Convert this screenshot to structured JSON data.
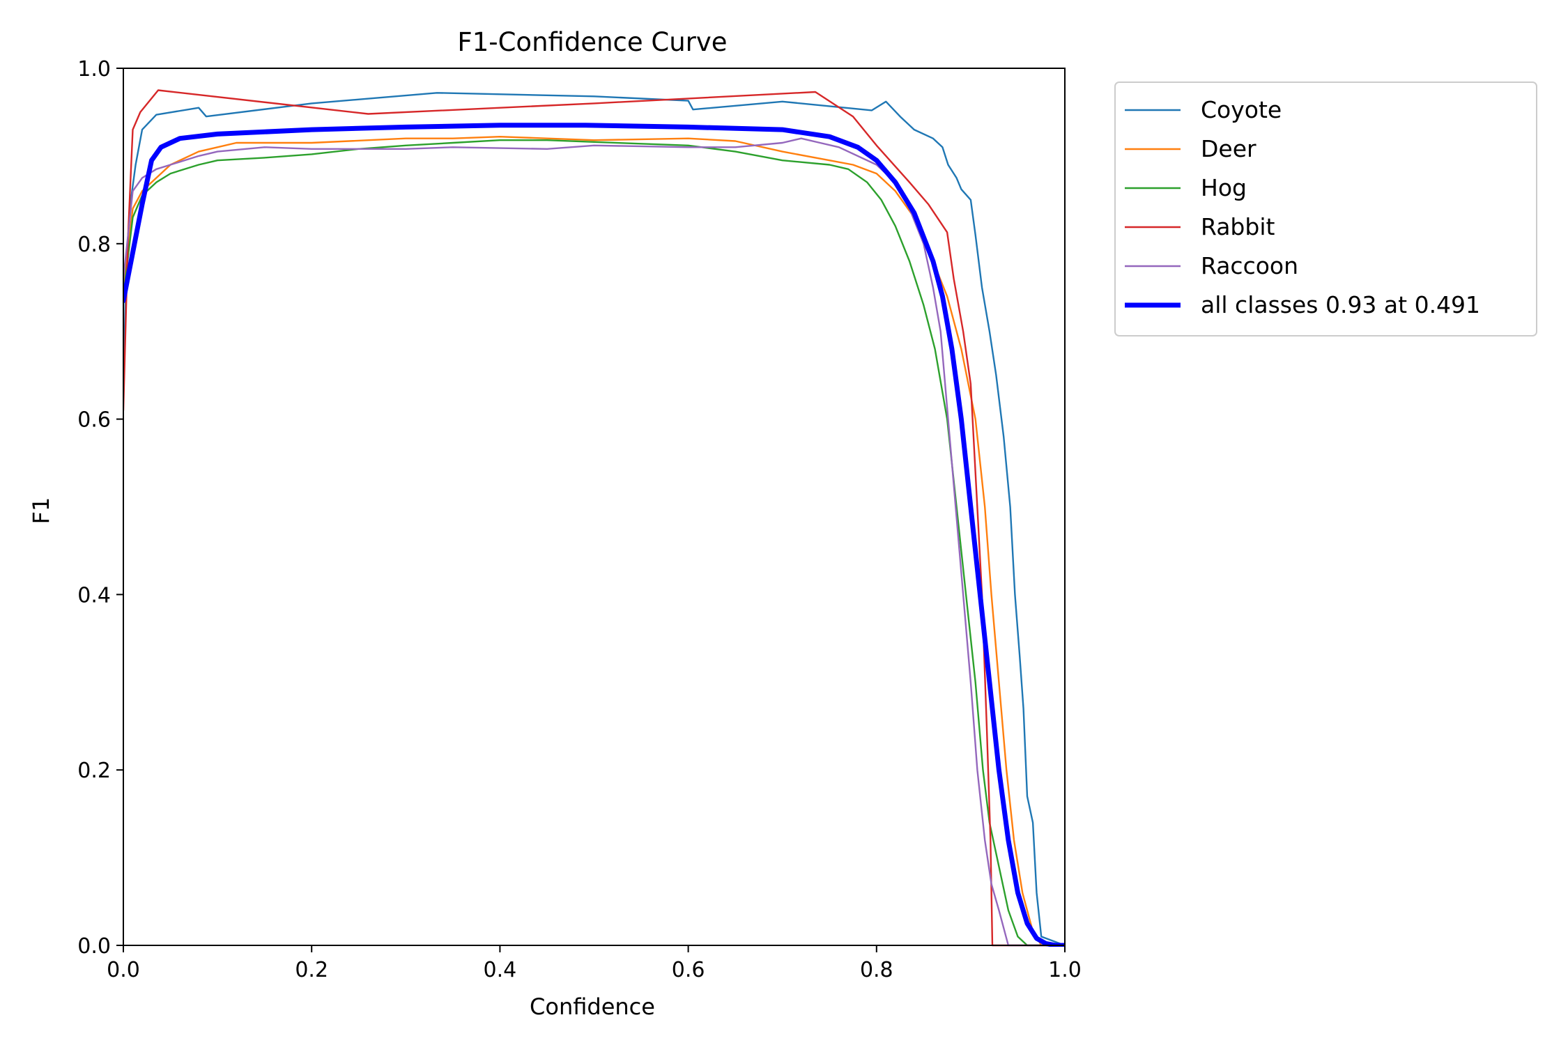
{
  "chart_data": {
    "type": "line",
    "title": "F1-Confidence Curve",
    "xlabel": "Confidence",
    "ylabel": "F1",
    "xlim": [
      0,
      1
    ],
    "ylim": [
      0,
      1
    ],
    "xticks": [
      "0.0",
      "0.2",
      "0.4",
      "0.6",
      "0.8",
      "1.0"
    ],
    "yticks": [
      "0.0",
      "0.2",
      "0.4",
      "0.6",
      "0.8",
      "1.0"
    ],
    "grid": false,
    "legend_position": "outside-top-right",
    "series": [
      {
        "name": "Coyote",
        "color": "#1f77b4",
        "width": 2.4,
        "points": [
          [
            0.0,
            0.62
          ],
          [
            0.003,
            0.78
          ],
          [
            0.008,
            0.85
          ],
          [
            0.013,
            0.89
          ],
          [
            0.02,
            0.93
          ],
          [
            0.035,
            0.947
          ],
          [
            0.08,
            0.955
          ],
          [
            0.088,
            0.945
          ],
          [
            0.2,
            0.96
          ],
          [
            0.333,
            0.972
          ],
          [
            0.5,
            0.968
          ],
          [
            0.6,
            0.963
          ],
          [
            0.605,
            0.953
          ],
          [
            0.7,
            0.962
          ],
          [
            0.795,
            0.952
          ],
          [
            0.81,
            0.962
          ],
          [
            0.825,
            0.945
          ],
          [
            0.84,
            0.93
          ],
          [
            0.86,
            0.92
          ],
          [
            0.87,
            0.91
          ],
          [
            0.876,
            0.89
          ],
          [
            0.885,
            0.875
          ],
          [
            0.89,
            0.862
          ],
          [
            0.9,
            0.85
          ],
          [
            0.905,
            0.81
          ],
          [
            0.912,
            0.75
          ],
          [
            0.92,
            0.7
          ],
          [
            0.927,
            0.65
          ],
          [
            0.935,
            0.58
          ],
          [
            0.942,
            0.5
          ],
          [
            0.947,
            0.4
          ],
          [
            0.952,
            0.33
          ],
          [
            0.956,
            0.27
          ],
          [
            0.96,
            0.17
          ],
          [
            0.966,
            0.14
          ],
          [
            0.97,
            0.06
          ],
          [
            0.975,
            0.01
          ],
          [
            1.0,
            0.0
          ]
        ]
      },
      {
        "name": "Deer",
        "color": "#ff7f0e",
        "width": 2.4,
        "points": [
          [
            0.0,
            0.75
          ],
          [
            0.01,
            0.84
          ],
          [
            0.02,
            0.86
          ],
          [
            0.035,
            0.875
          ],
          [
            0.05,
            0.89
          ],
          [
            0.08,
            0.905
          ],
          [
            0.1,
            0.91
          ],
          [
            0.12,
            0.915
          ],
          [
            0.2,
            0.915
          ],
          [
            0.3,
            0.92
          ],
          [
            0.35,
            0.92
          ],
          [
            0.4,
            0.922
          ],
          [
            0.5,
            0.918
          ],
          [
            0.6,
            0.92
          ],
          [
            0.65,
            0.917
          ],
          [
            0.7,
            0.905
          ],
          [
            0.75,
            0.895
          ],
          [
            0.775,
            0.89
          ],
          [
            0.8,
            0.88
          ],
          [
            0.82,
            0.86
          ],
          [
            0.84,
            0.83
          ],
          [
            0.86,
            0.78
          ],
          [
            0.875,
            0.74
          ],
          [
            0.89,
            0.68
          ],
          [
            0.905,
            0.6
          ],
          [
            0.915,
            0.5
          ],
          [
            0.922,
            0.4
          ],
          [
            0.93,
            0.3
          ],
          [
            0.938,
            0.2
          ],
          [
            0.946,
            0.12
          ],
          [
            0.955,
            0.06
          ],
          [
            0.965,
            0.02
          ],
          [
            0.975,
            0.0
          ],
          [
            1.0,
            0.0
          ]
        ]
      },
      {
        "name": "Hog",
        "color": "#2ca02c",
        "width": 2.4,
        "points": [
          [
            0.0,
            0.74
          ],
          [
            0.01,
            0.83
          ],
          [
            0.02,
            0.855
          ],
          [
            0.035,
            0.87
          ],
          [
            0.05,
            0.88
          ],
          [
            0.08,
            0.89
          ],
          [
            0.1,
            0.895
          ],
          [
            0.15,
            0.898
          ],
          [
            0.2,
            0.902
          ],
          [
            0.25,
            0.908
          ],
          [
            0.3,
            0.912
          ],
          [
            0.35,
            0.915
          ],
          [
            0.4,
            0.918
          ],
          [
            0.45,
            0.918
          ],
          [
            0.5,
            0.916
          ],
          [
            0.6,
            0.912
          ],
          [
            0.65,
            0.905
          ],
          [
            0.7,
            0.895
          ],
          [
            0.75,
            0.89
          ],
          [
            0.77,
            0.885
          ],
          [
            0.79,
            0.87
          ],
          [
            0.805,
            0.85
          ],
          [
            0.82,
            0.82
          ],
          [
            0.835,
            0.78
          ],
          [
            0.85,
            0.73
          ],
          [
            0.862,
            0.68
          ],
          [
            0.875,
            0.6
          ],
          [
            0.885,
            0.5
          ],
          [
            0.895,
            0.4
          ],
          [
            0.905,
            0.3
          ],
          [
            0.913,
            0.2
          ],
          [
            0.92,
            0.14
          ],
          [
            0.93,
            0.09
          ],
          [
            0.94,
            0.04
          ],
          [
            0.95,
            0.01
          ],
          [
            0.96,
            0.0
          ],
          [
            1.0,
            0.0
          ]
        ]
      },
      {
        "name": "Rabbit",
        "color": "#d62728",
        "width": 2.4,
        "points": [
          [
            0.0,
            0.61
          ],
          [
            0.005,
            0.81
          ],
          [
            0.01,
            0.93
          ],
          [
            0.018,
            0.95
          ],
          [
            0.037,
            0.975
          ],
          [
            0.26,
            0.948
          ],
          [
            0.5,
            0.96
          ],
          [
            0.735,
            0.973
          ],
          [
            0.775,
            0.945
          ],
          [
            0.8,
            0.912
          ],
          [
            0.835,
            0.87
          ],
          [
            0.855,
            0.845
          ],
          [
            0.875,
            0.813
          ],
          [
            0.882,
            0.76
          ],
          [
            0.892,
            0.7
          ],
          [
            0.9,
            0.64
          ],
          [
            0.906,
            0.52
          ],
          [
            0.912,
            0.4
          ],
          [
            0.917,
            0.25
          ],
          [
            0.921,
            0.12
          ],
          [
            0.923,
            0.0
          ],
          [
            1.0,
            0.0
          ]
        ]
      },
      {
        "name": "Raccoon",
        "color": "#9467bd",
        "width": 2.4,
        "points": [
          [
            0.0,
            0.76
          ],
          [
            0.01,
            0.86
          ],
          [
            0.02,
            0.875
          ],
          [
            0.035,
            0.885
          ],
          [
            0.05,
            0.89
          ],
          [
            0.08,
            0.9
          ],
          [
            0.1,
            0.905
          ],
          [
            0.15,
            0.91
          ],
          [
            0.2,
            0.908
          ],
          [
            0.3,
            0.908
          ],
          [
            0.35,
            0.91
          ],
          [
            0.45,
            0.908
          ],
          [
            0.5,
            0.912
          ],
          [
            0.6,
            0.91
          ],
          [
            0.65,
            0.91
          ],
          [
            0.7,
            0.915
          ],
          [
            0.72,
            0.92
          ],
          [
            0.74,
            0.915
          ],
          [
            0.76,
            0.91
          ],
          [
            0.8,
            0.89
          ],
          [
            0.82,
            0.87
          ],
          [
            0.835,
            0.84
          ],
          [
            0.85,
            0.8
          ],
          [
            0.86,
            0.75
          ],
          [
            0.868,
            0.7
          ],
          [
            0.876,
            0.6
          ],
          [
            0.884,
            0.5
          ],
          [
            0.892,
            0.4
          ],
          [
            0.9,
            0.3
          ],
          [
            0.907,
            0.2
          ],
          [
            0.915,
            0.12
          ],
          [
            0.922,
            0.07
          ],
          [
            0.93,
            0.04
          ],
          [
            0.94,
            0.0
          ],
          [
            1.0,
            0.0
          ]
        ]
      },
      {
        "name": "all classes 0.93 at 0.491",
        "color": "#0000ff",
        "width": 7,
        "points": [
          [
            0.0,
            0.735
          ],
          [
            0.01,
            0.79
          ],
          [
            0.02,
            0.845
          ],
          [
            0.03,
            0.895
          ],
          [
            0.04,
            0.91
          ],
          [
            0.06,
            0.92
          ],
          [
            0.1,
            0.925
          ],
          [
            0.2,
            0.93
          ],
          [
            0.3,
            0.933
          ],
          [
            0.4,
            0.935
          ],
          [
            0.491,
            0.935
          ],
          [
            0.6,
            0.933
          ],
          [
            0.7,
            0.93
          ],
          [
            0.75,
            0.922
          ],
          [
            0.78,
            0.91
          ],
          [
            0.8,
            0.895
          ],
          [
            0.82,
            0.87
          ],
          [
            0.84,
            0.835
          ],
          [
            0.86,
            0.78
          ],
          [
            0.87,
            0.74
          ],
          [
            0.88,
            0.68
          ],
          [
            0.89,
            0.6
          ],
          [
            0.9,
            0.5
          ],
          [
            0.91,
            0.4
          ],
          [
            0.92,
            0.3
          ],
          [
            0.93,
            0.2
          ],
          [
            0.94,
            0.12
          ],
          [
            0.95,
            0.06
          ],
          [
            0.96,
            0.025
          ],
          [
            0.97,
            0.008
          ],
          [
            0.98,
            0.002
          ],
          [
            0.99,
            0.0
          ],
          [
            1.0,
            0.0
          ]
        ]
      }
    ]
  }
}
